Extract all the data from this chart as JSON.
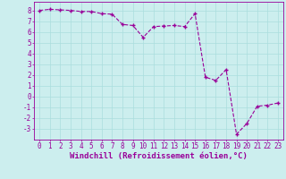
{
  "x": [
    0,
    1,
    2,
    3,
    4,
    5,
    6,
    7,
    8,
    9,
    10,
    11,
    12,
    13,
    14,
    15,
    16,
    17,
    18,
    19,
    20,
    21,
    22,
    23
  ],
  "y": [
    8.0,
    8.1,
    8.05,
    8.0,
    7.9,
    7.9,
    7.7,
    7.65,
    6.7,
    6.6,
    5.5,
    6.5,
    6.55,
    6.6,
    6.5,
    7.7,
    1.8,
    1.5,
    2.5,
    -3.5,
    -2.5,
    -0.9,
    -0.8,
    -0.6
  ],
  "line_color": "#990099",
  "marker": "+",
  "background_color": "#cceeee",
  "grid_color": "#aadddd",
  "xlabel": "Windchill (Refroidissement éolien,°C)",
  "xlabel_color": "#990099",
  "xlabel_fontsize": 6.5,
  "ylabel_ticks": [
    -3,
    -2,
    -1,
    0,
    1,
    2,
    3,
    4,
    5,
    6,
    7,
    8
  ],
  "xlim": [
    -0.5,
    23.5
  ],
  "ylim": [
    -4,
    8.8
  ],
  "tick_fontsize": 5.5,
  "spine_color": "#990099"
}
